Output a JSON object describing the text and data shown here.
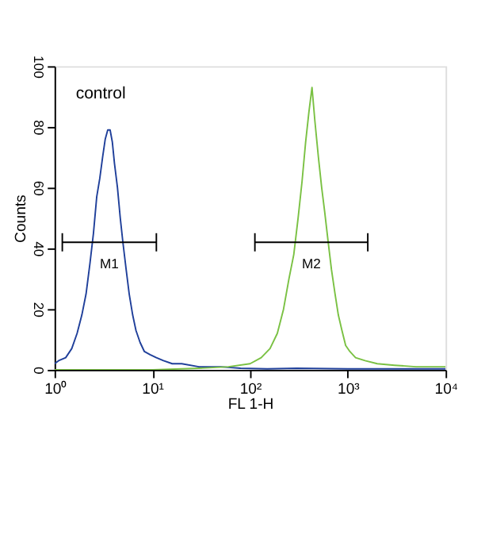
{
  "chart_data": {
    "type": "line",
    "xlabel": "FL 1-H",
    "ylabel": "Counts",
    "log": "x",
    "xlim": [
      1,
      10000
    ],
    "ylim": [
      0,
      100
    ],
    "xticks": [
      {
        "value": 1,
        "label": "10⁰"
      },
      {
        "value": 10,
        "label": "10¹"
      },
      {
        "value": 100,
        "label": "10²"
      },
      {
        "value": 1000,
        "label": "10³"
      },
      {
        "value": 10000,
        "label": "10⁴"
      }
    ],
    "yticks": [
      0,
      20,
      40,
      60,
      80,
      100
    ],
    "grid": false,
    "series": [
      {
        "color": "#1f3f9a",
        "x": [
          1.0,
          1.1,
          1.3,
          1.5,
          1.7,
          1.9,
          2.1,
          2.3,
          2.5,
          2.7,
          2.9,
          3.1,
          3.3,
          3.5,
          3.7,
          3.9,
          4.1,
          4.4,
          4.7,
          5.0,
          5.4,
          5.8,
          6.3,
          6.8,
          7.5,
          8.3,
          9.5,
          11,
          13,
          16,
          20,
          30,
          50,
          80,
          150,
          300,
          1000,
          10000
        ],
        "values": [
          2,
          3,
          4,
          7,
          12,
          18,
          25,
          35,
          45,
          57,
          63,
          70,
          76,
          79,
          79,
          75,
          68,
          60,
          50,
          42,
          33,
          25,
          18,
          13,
          9,
          6,
          5,
          4,
          3,
          2,
          2,
          1,
          1,
          0.5,
          0.3,
          0.5,
          0.3,
          0.3
        ]
      },
      {
        "color": "#7ac143",
        "x": [
          1,
          10,
          30,
          60,
          100,
          130,
          160,
          190,
          220,
          250,
          280,
          310,
          340,
          370,
          400,
          430,
          460,
          500,
          540,
          580,
          630,
          680,
          740,
          800,
          870,
          950,
          1050,
          1200,
          1500,
          2000,
          3000,
          5000,
          10000
        ],
        "values": [
          0,
          0,
          0.5,
          1,
          2,
          4,
          7,
          12,
          20,
          30,
          38,
          50,
          62,
          75,
          85,
          93,
          82,
          70,
          60,
          52,
          42,
          33,
          25,
          18,
          13,
          8,
          6,
          4,
          3,
          2,
          1.5,
          1,
          1
        ]
      },
      {
        "color": "#000000",
        "x": [
          1.2,
          11
        ],
        "values": [
          42,
          42
        ],
        "errors": [
          3,
          3
        ]
      },
      {
        "color": "#000000",
        "x": [
          112,
          1600
        ],
        "values": [
          42,
          42
        ],
        "errors": [
          3,
          3
        ]
      }
    ],
    "annotations": [
      "control",
      "M1",
      "M2"
    ]
  }
}
